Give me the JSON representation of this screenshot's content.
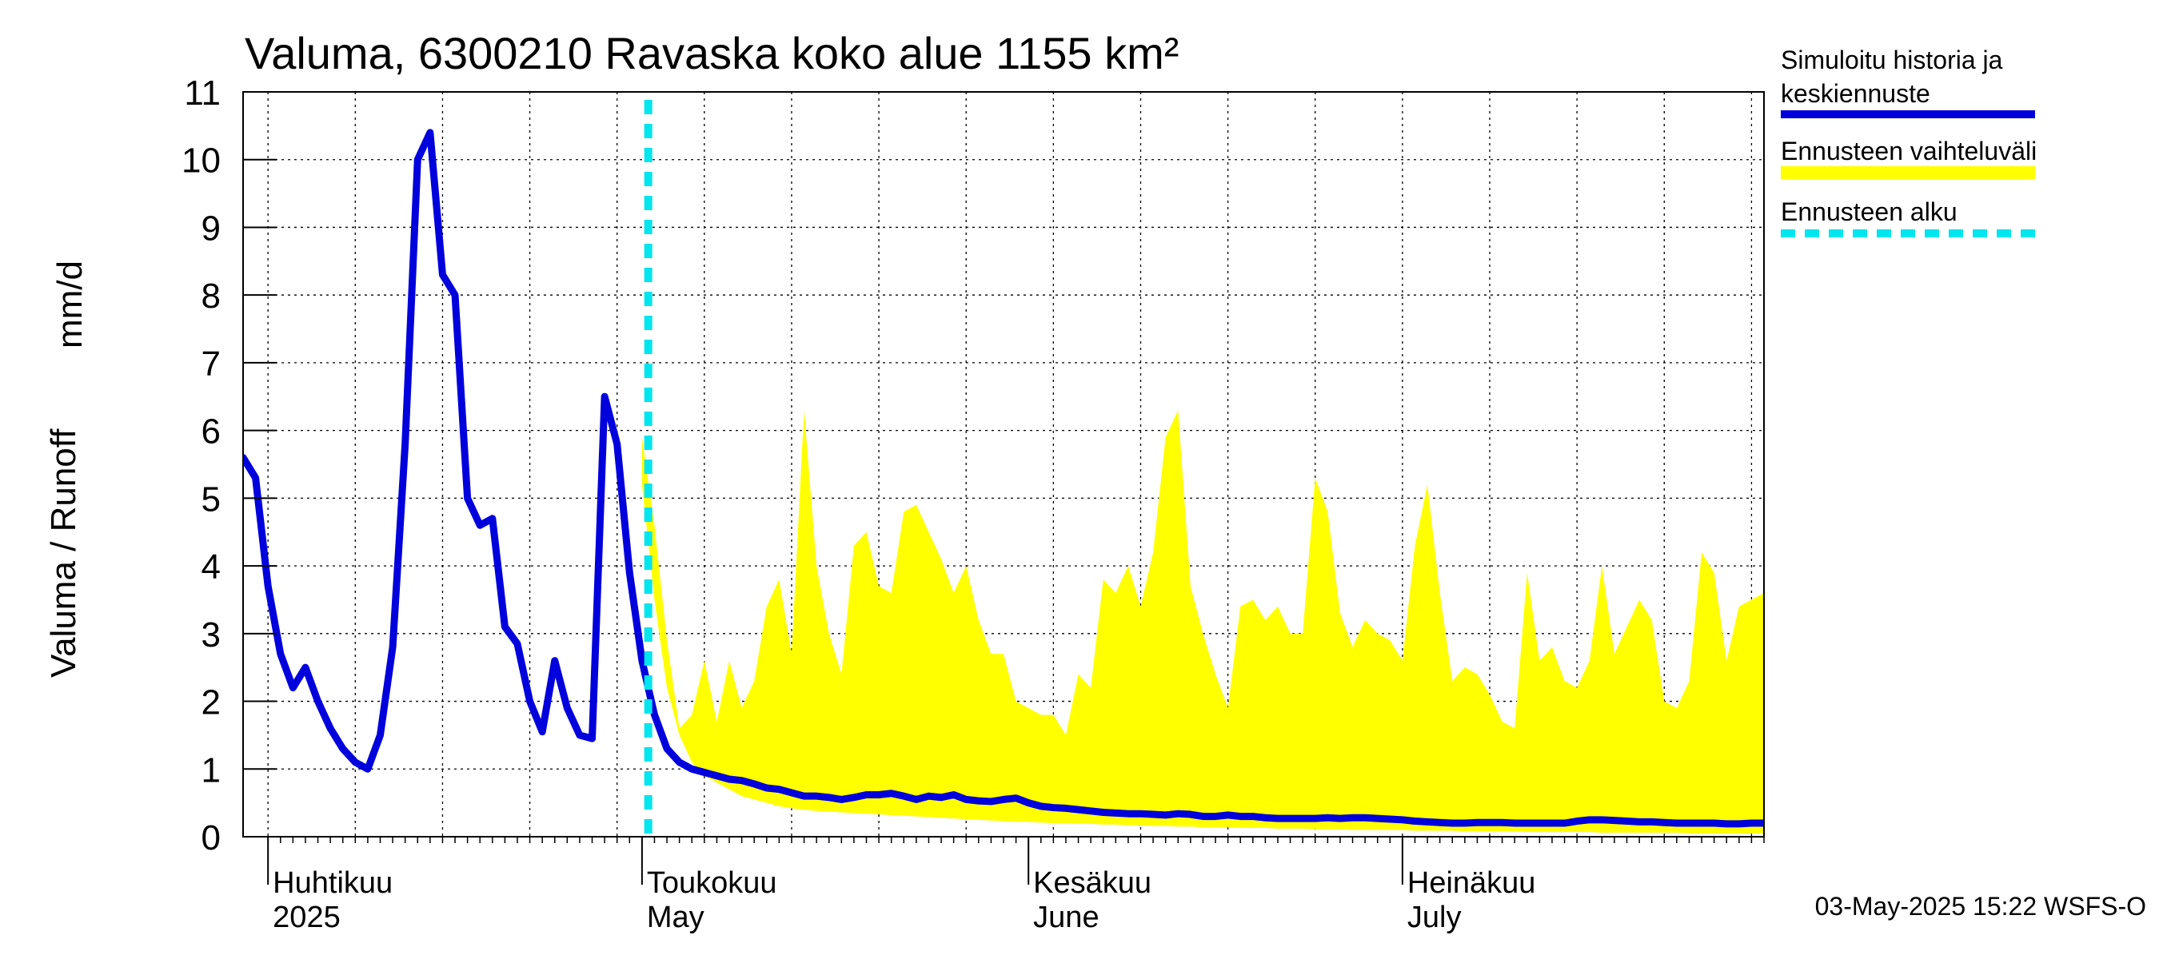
{
  "chart_data": {
    "type": "line",
    "title": "Valuma, 6300210 Ravaska koko alue 1155 km²",
    "ylabel_left": "Valuma / Runoff",
    "ylabel_right": "mm/d",
    "ylim": [
      0,
      11
    ],
    "yticks": [
      "0",
      "1",
      "2",
      "3",
      "4",
      "5",
      "6",
      "7",
      "8",
      "9",
      "10",
      "11"
    ],
    "xlim": [
      -2.0,
      120.0
    ],
    "months": [
      {
        "fi": "Huhtikuu",
        "en": "2025",
        "day": 0
      },
      {
        "fi": "Toukokuu",
        "en": "May",
        "day": 30
      },
      {
        "fi": "Kesäkuu",
        "en": "June",
        "day": 61
      },
      {
        "fi": "Heinäkuu",
        "en": "July",
        "day": 91
      }
    ],
    "grid": true,
    "forecast_start_day": 30.5,
    "legend": {
      "placement": "right",
      "entries": [
        {
          "label_line1": "Simuloitu historia ja",
          "label_line2": "keskiennuste",
          "color": "#0000dd"
        },
        {
          "label_line1": "Ennusteen vaihteluväli",
          "label_line2": "",
          "color": "#ffff00"
        },
        {
          "label_line1": "Ennusteen alku",
          "label_line2": "",
          "color": "#00e5ee"
        }
      ]
    },
    "footer": "03-May-2025 15:22 WSFS-O",
    "series": [
      {
        "name": "Simuloitu historia ja keskiennuste",
        "color": "#0000dd",
        "x": [
          -2,
          -1,
          0,
          1,
          2,
          3,
          4,
          5,
          6,
          7,
          8,
          9,
          10,
          11,
          12,
          13,
          14,
          15,
          16,
          17,
          18,
          19,
          20,
          21,
          22,
          23,
          24,
          25,
          26,
          27,
          28,
          29,
          30,
          31,
          32,
          33,
          34,
          35,
          36,
          37,
          38,
          39,
          40,
          41,
          42,
          43,
          44,
          45,
          46,
          47,
          48,
          49,
          50,
          51,
          52,
          53,
          54,
          55,
          56,
          57,
          58,
          59,
          60,
          61,
          62,
          63,
          64,
          65,
          66,
          67,
          68,
          69,
          70,
          71,
          72,
          73,
          74,
          75,
          76,
          77,
          78,
          79,
          80,
          81,
          82,
          83,
          84,
          85,
          86,
          87,
          88,
          89,
          90,
          91,
          92,
          93,
          94,
          95,
          96,
          97,
          98,
          99,
          100,
          101,
          102,
          103,
          104,
          105,
          106,
          107,
          108,
          109,
          110,
          111,
          112,
          113,
          114,
          115,
          116,
          117,
          118,
          119,
          120
        ],
        "values": [
          5.6,
          5.3,
          3.7,
          2.7,
          2.2,
          2.5,
          2.0,
          1.6,
          1.3,
          1.1,
          1.0,
          1.5,
          2.8,
          5.8,
          10.0,
          10.4,
          8.3,
          8.0,
          5.0,
          4.6,
          4.7,
          3.1,
          2.85,
          2.0,
          1.55,
          2.6,
          1.9,
          1.5,
          1.45,
          6.5,
          5.8,
          3.9,
          2.6,
          1.8,
          1.3,
          1.1,
          1.0,
          0.95,
          0.9,
          0.85,
          0.83,
          0.78,
          0.72,
          0.7,
          0.65,
          0.6,
          0.6,
          0.58,
          0.55,
          0.58,
          0.62,
          0.62,
          0.64,
          0.6,
          0.55,
          0.6,
          0.58,
          0.62,
          0.55,
          0.53,
          0.52,
          0.55,
          0.57,
          0.5,
          0.45,
          0.43,
          0.42,
          0.4,
          0.38,
          0.36,
          0.35,
          0.34,
          0.34,
          0.33,
          0.32,
          0.34,
          0.33,
          0.3,
          0.3,
          0.32,
          0.3,
          0.3,
          0.28,
          0.27,
          0.27,
          0.27,
          0.27,
          0.28,
          0.27,
          0.28,
          0.28,
          0.27,
          0.26,
          0.25,
          0.23,
          0.22,
          0.21,
          0.2,
          0.2,
          0.21,
          0.21,
          0.21,
          0.2,
          0.2,
          0.2,
          0.2,
          0.2,
          0.23,
          0.25,
          0.25,
          0.24,
          0.23,
          0.22,
          0.22,
          0.21,
          0.2,
          0.2,
          0.2,
          0.2,
          0.19,
          0.19,
          0.2,
          0.2
        ]
      }
    ],
    "range_band": {
      "name": "Ennusteen vaihteluväli",
      "color": "#ffff00",
      "x": [
        30,
        31,
        32,
        33,
        34,
        35,
        36,
        37,
        38,
        39,
        40,
        41,
        42,
        43,
        44,
        45,
        46,
        47,
        48,
        49,
        50,
        51,
        52,
        53,
        54,
        55,
        56,
        57,
        58,
        59,
        60,
        61,
        62,
        63,
        64,
        65,
        66,
        67,
        68,
        69,
        70,
        71,
        72,
        73,
        74,
        75,
        76,
        77,
        78,
        79,
        80,
        81,
        82,
        83,
        84,
        85,
        86,
        87,
        88,
        89,
        90,
        91,
        92,
        93,
        94,
        95,
        96,
        97,
        98,
        99,
        100,
        101,
        102,
        103,
        104,
        105,
        106,
        107,
        108,
        109,
        110,
        111,
        112,
        113,
        114,
        115,
        116,
        117,
        118,
        119,
        120
      ],
      "lower": [
        5.2,
        3.5,
        2.2,
        1.5,
        1.1,
        0.9,
        0.8,
        0.7,
        0.6,
        0.55,
        0.5,
        0.45,
        0.42,
        0.4,
        0.38,
        0.37,
        0.36,
        0.35,
        0.34,
        0.33,
        0.32,
        0.31,
        0.3,
        0.29,
        0.28,
        0.27,
        0.26,
        0.25,
        0.24,
        0.23,
        0.22,
        0.22,
        0.21,
        0.2,
        0.2,
        0.19,
        0.19,
        0.18,
        0.18,
        0.17,
        0.17,
        0.16,
        0.16,
        0.15,
        0.15,
        0.14,
        0.14,
        0.14,
        0.13,
        0.13,
        0.13,
        0.12,
        0.12,
        0.12,
        0.11,
        0.11,
        0.11,
        0.1,
        0.1,
        0.1,
        0.1,
        0.1,
        0.09,
        0.09,
        0.09,
        0.09,
        0.08,
        0.08,
        0.08,
        0.08,
        0.08,
        0.07,
        0.07,
        0.07,
        0.07,
        0.07,
        0.07,
        0.06,
        0.06,
        0.06,
        0.06,
        0.06,
        0.06,
        0.06,
        0.05,
        0.05,
        0.05,
        0.05,
        0.05,
        0.05,
        0.05
      ],
      "upper": [
        5.9,
        4.6,
        2.9,
        1.6,
        1.8,
        2.6,
        1.7,
        2.6,
        1.9,
        2.3,
        3.4,
        3.8,
        2.7,
        6.3,
        4.0,
        3.0,
        2.4,
        4.3,
        4.5,
        3.7,
        3.6,
        4.8,
        4.9,
        4.5,
        4.1,
        3.6,
        4.0,
        3.2,
        2.7,
        2.7,
        2.0,
        1.9,
        1.8,
        1.8,
        1.5,
        2.4,
        2.2,
        3.8,
        3.6,
        4.0,
        3.4,
        4.2,
        5.9,
        6.3,
        3.7,
        3.0,
        2.4,
        1.9,
        3.4,
        3.5,
        3.2,
        3.4,
        3.0,
        3.0,
        5.3,
        4.8,
        3.3,
        2.8,
        3.2,
        3.0,
        2.9,
        2.6,
        4.3,
        5.2,
        3.6,
        2.3,
        2.5,
        2.4,
        2.1,
        1.7,
        1.6,
        3.9,
        2.6,
        2.8,
        2.3,
        2.2,
        2.6,
        4.0,
        2.7,
        3.1,
        3.5,
        3.2,
        2.0,
        1.9,
        2.3,
        4.2,
        3.9,
        2.6,
        3.4,
        3.5,
        3.6
      ]
    }
  }
}
